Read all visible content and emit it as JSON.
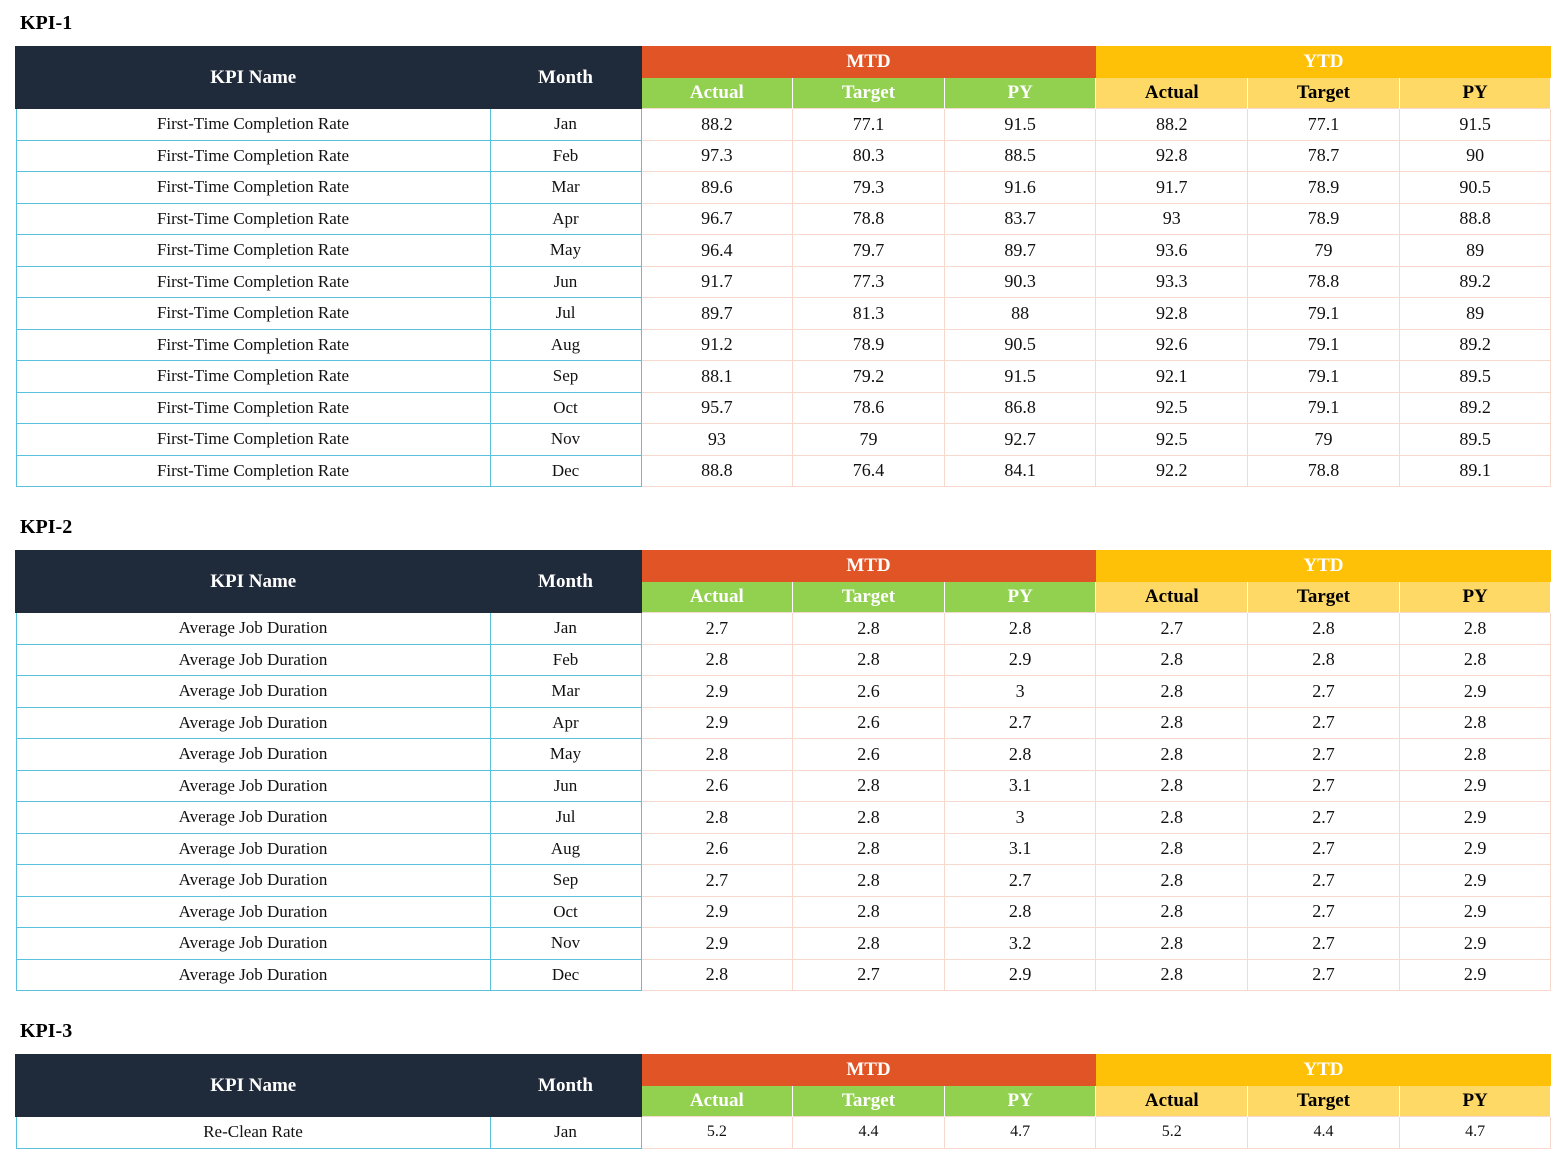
{
  "headers": {
    "kpi_name": "KPI Name",
    "month": "Month",
    "mtd": "MTD",
    "ytd": "YTD",
    "actual": "Actual",
    "target": "Target",
    "py": "PY"
  },
  "colors": {
    "header_dark": "#1f2a3a",
    "mtd": "#e05426",
    "ytd": "#fec107",
    "mtd_sub": "#92d050",
    "ytd_sub": "#ffd966",
    "name_border": "#5bc0de",
    "value_border": "#f6d8cc"
  },
  "kpis": [
    {
      "title": "KPI-1",
      "rows": [
        {
          "name": "First-Time Completion Rate",
          "month": "Jan",
          "mtd_actual": "88.2",
          "mtd_target": "77.1",
          "mtd_py": "91.5",
          "ytd_actual": "88.2",
          "ytd_target": "77.1",
          "ytd_py": "91.5"
        },
        {
          "name": "First-Time Completion Rate",
          "month": "Feb",
          "mtd_actual": "97.3",
          "mtd_target": "80.3",
          "mtd_py": "88.5",
          "ytd_actual": "92.8",
          "ytd_target": "78.7",
          "ytd_py": "90"
        },
        {
          "name": "First-Time Completion Rate",
          "month": "Mar",
          "mtd_actual": "89.6",
          "mtd_target": "79.3",
          "mtd_py": "91.6",
          "ytd_actual": "91.7",
          "ytd_target": "78.9",
          "ytd_py": "90.5"
        },
        {
          "name": "First-Time Completion Rate",
          "month": "Apr",
          "mtd_actual": "96.7",
          "mtd_target": "78.8",
          "mtd_py": "83.7",
          "ytd_actual": "93",
          "ytd_target": "78.9",
          "ytd_py": "88.8"
        },
        {
          "name": "First-Time Completion Rate",
          "month": "May",
          "mtd_actual": "96.4",
          "mtd_target": "79.7",
          "mtd_py": "89.7",
          "ytd_actual": "93.6",
          "ytd_target": "79",
          "ytd_py": "89"
        },
        {
          "name": "First-Time Completion Rate",
          "month": "Jun",
          "mtd_actual": "91.7",
          "mtd_target": "77.3",
          "mtd_py": "90.3",
          "ytd_actual": "93.3",
          "ytd_target": "78.8",
          "ytd_py": "89.2"
        },
        {
          "name": "First-Time Completion Rate",
          "month": "Jul",
          "mtd_actual": "89.7",
          "mtd_target": "81.3",
          "mtd_py": "88",
          "ytd_actual": "92.8",
          "ytd_target": "79.1",
          "ytd_py": "89"
        },
        {
          "name": "First-Time Completion Rate",
          "month": "Aug",
          "mtd_actual": "91.2",
          "mtd_target": "78.9",
          "mtd_py": "90.5",
          "ytd_actual": "92.6",
          "ytd_target": "79.1",
          "ytd_py": "89.2"
        },
        {
          "name": "First-Time Completion Rate",
          "month": "Sep",
          "mtd_actual": "88.1",
          "mtd_target": "79.2",
          "mtd_py": "91.5",
          "ytd_actual": "92.1",
          "ytd_target": "79.1",
          "ytd_py": "89.5"
        },
        {
          "name": "First-Time Completion Rate",
          "month": "Oct",
          "mtd_actual": "95.7",
          "mtd_target": "78.6",
          "mtd_py": "86.8",
          "ytd_actual": "92.5",
          "ytd_target": "79.1",
          "ytd_py": "89.2"
        },
        {
          "name": "First-Time Completion Rate",
          "month": "Nov",
          "mtd_actual": "93",
          "mtd_target": "79",
          "mtd_py": "92.7",
          "ytd_actual": "92.5",
          "ytd_target": "79",
          "ytd_py": "89.5"
        },
        {
          "name": "First-Time Completion Rate",
          "month": "Dec",
          "mtd_actual": "88.8",
          "mtd_target": "76.4",
          "mtd_py": "84.1",
          "ytd_actual": "92.2",
          "ytd_target": "78.8",
          "ytd_py": "89.1"
        }
      ]
    },
    {
      "title": "KPI-2",
      "rows": [
        {
          "name": "Average Job Duration",
          "month": "Jan",
          "mtd_actual": "2.7",
          "mtd_target": "2.8",
          "mtd_py": "2.8",
          "ytd_actual": "2.7",
          "ytd_target": "2.8",
          "ytd_py": "2.8"
        },
        {
          "name": "Average Job Duration",
          "month": "Feb",
          "mtd_actual": "2.8",
          "mtd_target": "2.8",
          "mtd_py": "2.9",
          "ytd_actual": "2.8",
          "ytd_target": "2.8",
          "ytd_py": "2.8"
        },
        {
          "name": "Average Job Duration",
          "month": "Mar",
          "mtd_actual": "2.9",
          "mtd_target": "2.6",
          "mtd_py": "3",
          "ytd_actual": "2.8",
          "ytd_target": "2.7",
          "ytd_py": "2.9"
        },
        {
          "name": "Average Job Duration",
          "month": "Apr",
          "mtd_actual": "2.9",
          "mtd_target": "2.6",
          "mtd_py": "2.7",
          "ytd_actual": "2.8",
          "ytd_target": "2.7",
          "ytd_py": "2.8"
        },
        {
          "name": "Average Job Duration",
          "month": "May",
          "mtd_actual": "2.8",
          "mtd_target": "2.6",
          "mtd_py": "2.8",
          "ytd_actual": "2.8",
          "ytd_target": "2.7",
          "ytd_py": "2.8"
        },
        {
          "name": "Average Job Duration",
          "month": "Jun",
          "mtd_actual": "2.6",
          "mtd_target": "2.8",
          "mtd_py": "3.1",
          "ytd_actual": "2.8",
          "ytd_target": "2.7",
          "ytd_py": "2.9"
        },
        {
          "name": "Average Job Duration",
          "month": "Jul",
          "mtd_actual": "2.8",
          "mtd_target": "2.8",
          "mtd_py": "3",
          "ytd_actual": "2.8",
          "ytd_target": "2.7",
          "ytd_py": "2.9"
        },
        {
          "name": "Average Job Duration",
          "month": "Aug",
          "mtd_actual": "2.6",
          "mtd_target": "2.8",
          "mtd_py": "3.1",
          "ytd_actual": "2.8",
          "ytd_target": "2.7",
          "ytd_py": "2.9"
        },
        {
          "name": "Average Job Duration",
          "month": "Sep",
          "mtd_actual": "2.7",
          "mtd_target": "2.8",
          "mtd_py": "2.7",
          "ytd_actual": "2.8",
          "ytd_target": "2.7",
          "ytd_py": "2.9"
        },
        {
          "name": "Average Job Duration",
          "month": "Oct",
          "mtd_actual": "2.9",
          "mtd_target": "2.8",
          "mtd_py": "2.8",
          "ytd_actual": "2.8",
          "ytd_target": "2.7",
          "ytd_py": "2.9"
        },
        {
          "name": "Average Job Duration",
          "month": "Nov",
          "mtd_actual": "2.9",
          "mtd_target": "2.8",
          "mtd_py": "3.2",
          "ytd_actual": "2.8",
          "ytd_target": "2.7",
          "ytd_py": "2.9"
        },
        {
          "name": "Average Job Duration",
          "month": "Dec",
          "mtd_actual": "2.8",
          "mtd_target": "2.7",
          "mtd_py": "2.9",
          "ytd_actual": "2.8",
          "ytd_target": "2.7",
          "ytd_py": "2.9"
        }
      ]
    },
    {
      "title": "KPI-3",
      "rows": [
        {
          "name": "Re-Clean Rate",
          "month": "Jan",
          "mtd_actual": "5.2",
          "mtd_target": "4.4",
          "mtd_py": "4.7",
          "ytd_actual": "5.2",
          "ytd_target": "4.4",
          "ytd_py": "4.7"
        }
      ]
    }
  ]
}
